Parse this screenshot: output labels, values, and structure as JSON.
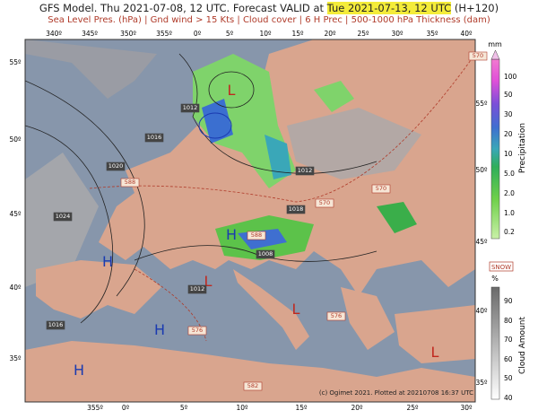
{
  "header": {
    "title_prefix": "GFS Model. Thu 2021-07-08, 12 UTC. Forecast VALID at",
    "title_highlight": "Tue 2021-07-13, 12 UTC",
    "title_suffix": "(H+120)",
    "subtitle": "Sea Level Pres. (hPa) | Gnd wind > 15 Kts | Cloud cover | 6 H Prec | 500-1000 hPa Thickness (dam)"
  },
  "map": {
    "top_longitudes": [
      "340º",
      "345º",
      "350º",
      "355º",
      "0º",
      "5º",
      "10º",
      "15º",
      "20º",
      "25º",
      "30º",
      "35º",
      "40º"
    ],
    "bottom_longitudes": [
      "355º",
      "0º",
      "5º",
      "10º",
      "15º",
      "20º",
      "25º",
      "30º"
    ],
    "left_latitudes": [
      "55º",
      "50º",
      "45º",
      "40º",
      "35º"
    ],
    "right_latitudes": [
      "55º",
      "50º",
      "45º",
      "40º",
      "35º"
    ],
    "pressure_centers": [
      "L",
      "H",
      "H",
      "L",
      "H",
      "L",
      "H",
      "L"
    ],
    "isobar_labels": [
      "1012",
      "1016",
      "1020",
      "1024",
      "1012",
      "1018",
      "1008",
      "1012",
      "1016"
    ],
    "thickness_labels": [
      "588",
      "588",
      "570",
      "570",
      "570",
      "576",
      "576",
      "582"
    ],
    "credit": "(c) Ogimet 2021. Plotted at 20210708 16:37 UTC"
  },
  "precipitation_legend": {
    "unit": "mm",
    "ticks": [
      "100",
      "50",
      "30",
      "20",
      "10",
      "5.0",
      "2.0",
      "1.0",
      "0.2"
    ],
    "title": "Precipitation",
    "snow": "SNOW"
  },
  "cloud_legend": {
    "unit": "%",
    "ticks": [
      "90",
      "80",
      "70",
      "60",
      "50",
      "40"
    ],
    "title": "Cloud Amount"
  }
}
